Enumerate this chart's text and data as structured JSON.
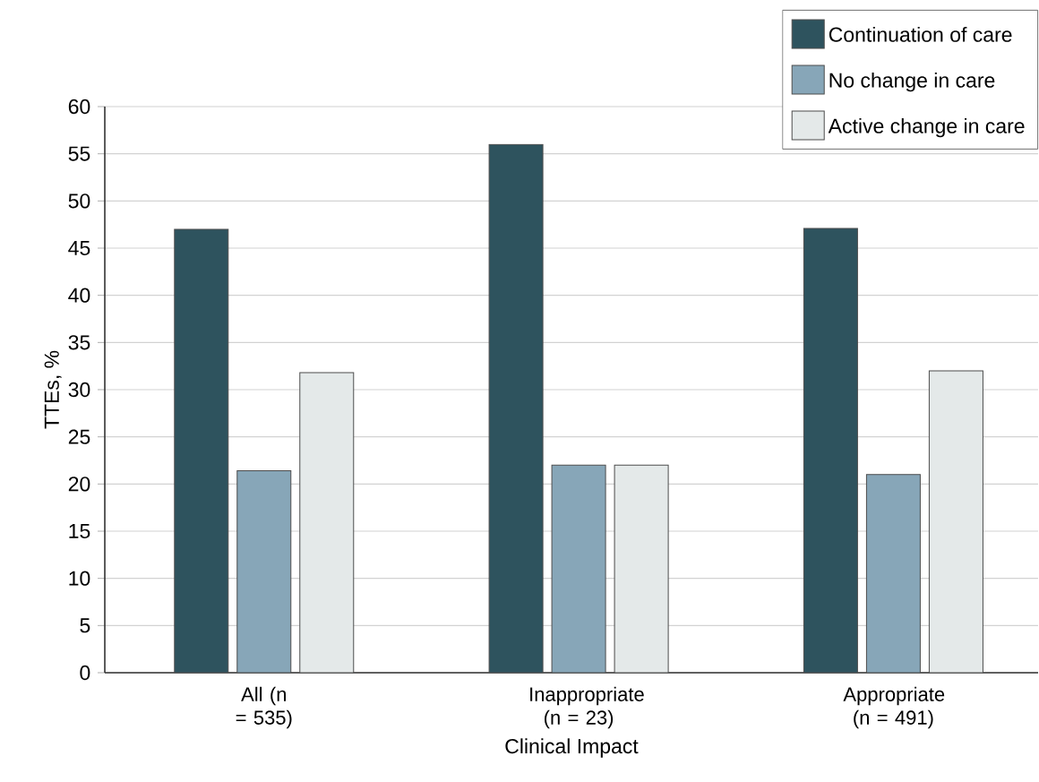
{
  "chart_data": {
    "type": "bar",
    "xlabel": "Clinical Impact",
    "ylabel": "TTEs, %",
    "categories": [
      "All (n = 535)",
      "Inappropriate (n = 23)",
      "Appropriate (n = 491)"
    ],
    "series": [
      {
        "name": "Continuation of care",
        "color": "#2e535e",
        "values": [
          47,
          56,
          47.1
        ]
      },
      {
        "name": "No change in care",
        "color": "#87a6b8",
        "values": [
          21.4,
          22,
          21
        ]
      },
      {
        "name": "Active change in care",
        "color": "#e4e9e9",
        "values": [
          31.8,
          22,
          32
        ]
      }
    ],
    "ylim": [
      0,
      60
    ],
    "yticks": [
      0,
      5,
      10,
      15,
      20,
      25,
      30,
      35,
      40,
      45,
      50,
      55,
      60
    ],
    "grid": "y",
    "legend": "top right"
  }
}
